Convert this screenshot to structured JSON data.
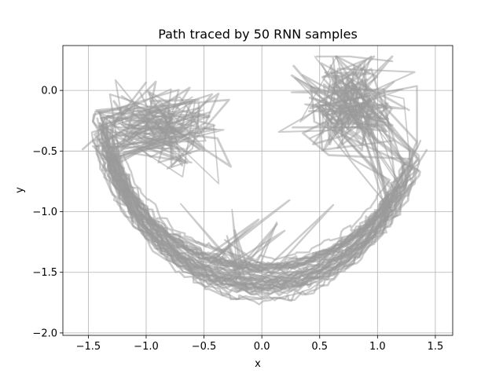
{
  "chart_data": {
    "type": "line",
    "title": "Path traced by 50 RNN samples",
    "xlabel": "x",
    "ylabel": "y",
    "xlim": [
      -1.72,
      1.65
    ],
    "ylim": [
      -2.02,
      0.37
    ],
    "xticks": [
      -1.5,
      -1.0,
      -0.5,
      0.0,
      0.5,
      1.0,
      1.5
    ],
    "xtick_labels": [
      "−1.5",
      "−1.0",
      "−0.5",
      "0.0",
      "0.5",
      "1.0",
      "1.5"
    ],
    "yticks": [
      -2.0,
      -1.5,
      -1.0,
      -0.5,
      0.0
    ],
    "ytick_labels": [
      "−2.0",
      "−1.5",
      "−1.0",
      "−0.5",
      "0.0"
    ],
    "grid": true,
    "legend": "none",
    "line_color": "#999999",
    "line_alpha": 0.5,
    "series_count": 50,
    "envelope": {
      "x_range": [
        -1.55,
        1.5
      ],
      "y_range": [
        -1.92,
        0.28
      ],
      "left_cluster_center": [
        -0.85,
        -0.3
      ],
      "right_cluster_center": [
        0.75,
        -0.1
      ],
      "arc_bottom_y": -1.75
    }
  }
}
